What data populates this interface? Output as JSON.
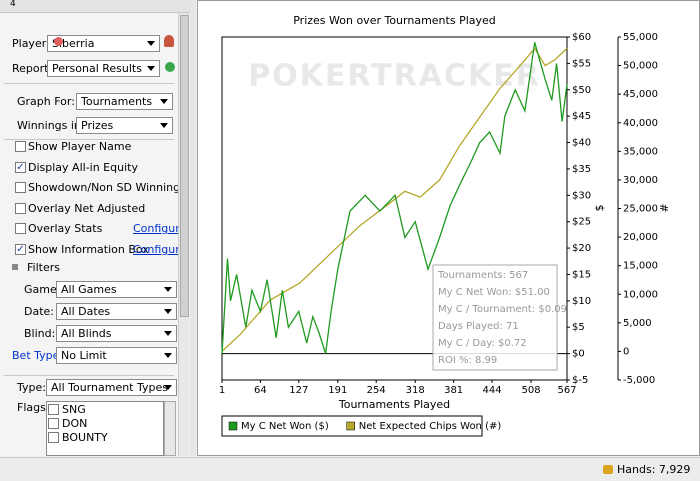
{
  "toolbar": {
    "tab": "4"
  },
  "sidebar": {
    "player": {
      "label": "Player:",
      "value": "Siberria"
    },
    "report": {
      "label": "Report:",
      "value": "Personal Results"
    },
    "graph_for": {
      "label": "Graph For:",
      "value": "Tournaments"
    },
    "winnings_in": {
      "label": "Winnings in:",
      "value": "Prizes"
    },
    "options": [
      {
        "label": "Show Player Name",
        "checked": false
      },
      {
        "label": "Display All-in Equity",
        "checked": true
      },
      {
        "label": "Showdown/Non SD Winnings",
        "checked": false
      },
      {
        "label": "Overlay Net Adjusted",
        "checked": false
      },
      {
        "label": "Overlay Stats",
        "checked": false,
        "link": "Configure"
      },
      {
        "label": "Show Information Box",
        "checked": true,
        "link": "Configure"
      }
    ],
    "filters": {
      "title": "Filters",
      "rows": [
        {
          "label": "Game:",
          "value": "All Games"
        },
        {
          "label": "Date:",
          "value": "All Dates"
        },
        {
          "label": "Blind:",
          "value": "All Blinds"
        },
        {
          "label": "Bet Type:",
          "value": "No Limit"
        }
      ]
    },
    "type": {
      "label": "Type:",
      "value": "All Tournament Types"
    },
    "flags": {
      "label": "Flags:",
      "items": [
        "SNG",
        "DON",
        "BOUNTY"
      ]
    }
  },
  "status": {
    "hands": "Hands: 7,929"
  },
  "chart_data": {
    "type": "line",
    "title": "Prizes Won over Tournaments Played",
    "watermark": "POKERTRACKER",
    "x_label": "Tournaments Played",
    "y_label": "$",
    "y2_label": "#",
    "xlim": [
      1,
      567
    ],
    "xticks": [
      1,
      64,
      127,
      191,
      254,
      318,
      381,
      444,
      508,
      567
    ],
    "ylim": [
      -5,
      60
    ],
    "yticks": [
      {
        "value": -5,
        "label": "$-5"
      },
      {
        "value": 0,
        "label": "$0"
      },
      {
        "value": 5,
        "label": "$5"
      },
      {
        "value": 10,
        "label": "$10"
      },
      {
        "value": 15,
        "label": "$15"
      },
      {
        "value": 20,
        "label": "$20"
      },
      {
        "value": 25,
        "label": "$25"
      },
      {
        "value": 30,
        "label": "$30"
      },
      {
        "value": 35,
        "label": "$35"
      },
      {
        "value": 40,
        "label": "$40"
      },
      {
        "value": 45,
        "label": "$45"
      },
      {
        "value": 50,
        "label": "$50"
      },
      {
        "value": 55,
        "label": "$55"
      },
      {
        "value": 60,
        "label": "$60"
      }
    ],
    "y2lim": [
      -5000,
      55000
    ],
    "y2ticks": [
      {
        "value": -5000,
        "label": "-5,000"
      },
      0,
      {
        "value": 5000,
        "label": "5,000"
      },
      {
        "value": 10000,
        "label": "10,000"
      },
      {
        "value": 15000,
        "label": "15,000"
      },
      {
        "value": 20000,
        "label": "20,000"
      },
      {
        "value": 25000,
        "label": "25,000"
      },
      {
        "value": 30000,
        "label": "30,000"
      },
      {
        "value": 35000,
        "label": "35,000"
      },
      {
        "value": 40000,
        "label": "40,000"
      },
      {
        "value": 45000,
        "label": "45,000"
      },
      {
        "value": 50000,
        "label": "50,000"
      },
      {
        "value": 55000,
        "label": "55,000"
      }
    ],
    "series": [
      {
        "name": "My C Net Won ($)",
        "color": "#1f9a1f",
        "x": [
          1,
          10,
          15,
          25,
          40,
          50,
          64,
          75,
          90,
          100,
          110,
          127,
          140,
          150,
          160,
          171,
          180,
          191,
          211,
          236,
          260,
          285,
          301,
          318,
          339,
          358,
          375,
          391,
          408,
          424,
          440,
          457,
          465,
          482,
          498,
          514,
          531,
          542,
          550,
          559,
          567
        ],
        "values": [
          0,
          18,
          10,
          15,
          5,
          12,
          8,
          14,
          3,
          12,
          5,
          8,
          2,
          7,
          4,
          0,
          8,
          16,
          27,
          30,
          27,
          30,
          22,
          25,
          16,
          22,
          28,
          32,
          36,
          40,
          42,
          38,
          45,
          50,
          46,
          59,
          52,
          48,
          55,
          44,
          51
        ]
      },
      {
        "name": "Net Expected Chips Won (#)",
        "color": "#b5a82a",
        "axis": "y2",
        "x": [
          1,
          31,
          80,
          129,
          178,
          227,
          277,
          301,
          326,
          358,
          391,
          424,
          457,
          490,
          514,
          531,
          547,
          567
        ],
        "values": [
          0,
          3000,
          9000,
          12000,
          17000,
          22000,
          26000,
          28000,
          27000,
          30000,
          36000,
          41000,
          46000,
          50000,
          53000,
          50000,
          51000,
          53000
        ]
      }
    ],
    "info_box": [
      "Tournaments: 567",
      "My C Net Won: $51.00",
      "My C / Tournament: $0.09",
      "Days Played: 71",
      "My C / Day: $0.72",
      "ROI %: 8.99"
    ]
  }
}
